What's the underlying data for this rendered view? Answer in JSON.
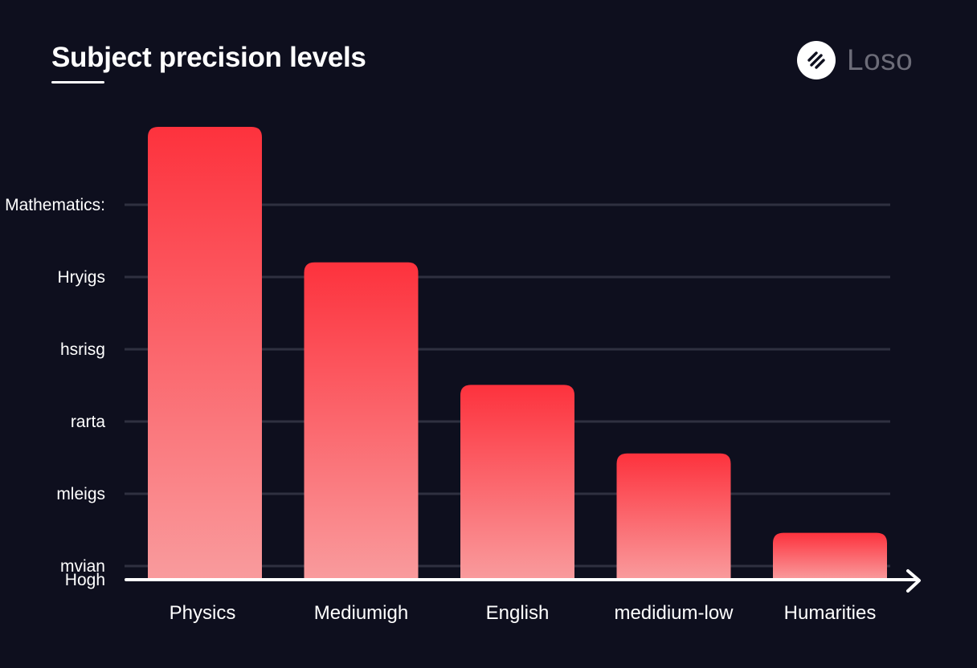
{
  "title": "Subject precision levels",
  "brand": {
    "name": "Loso",
    "icon": "stripes-logo-icon"
  },
  "colors": {
    "background": "#0e0f1e",
    "bar_top": "#fd323d",
    "bar_bottom": "#f99b9d",
    "grid": "#2f3040",
    "axis": "#ffffff"
  },
  "chart_data": {
    "type": "bar",
    "categories": [
      "Physics",
      "Mediumigh",
      "English",
      "medidium-low",
      "Humarities"
    ],
    "values": [
      6.3,
      4.4,
      2.7,
      1.75,
      0.65
    ],
    "y_tick_labels": [
      "Hogh",
      "mvian",
      "mleigs",
      "rarta",
      "hsrisg",
      "Hryigs",
      "Mathematics:"
    ],
    "ylim": [
      0,
      6.2
    ],
    "grid": true,
    "xlabel": "",
    "ylabel": ""
  }
}
